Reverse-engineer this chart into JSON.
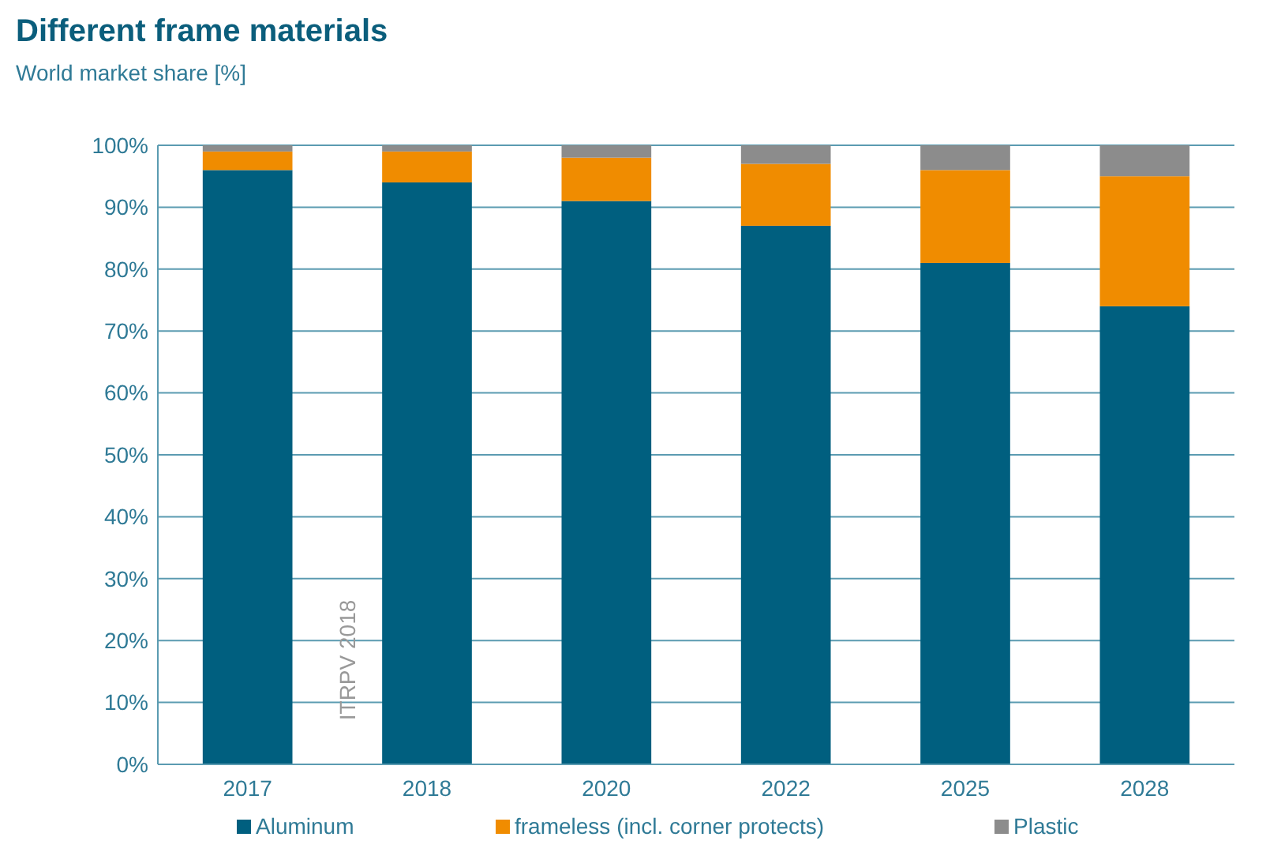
{
  "chart_data": {
    "type": "bar",
    "title": "Different frame materials",
    "subtitle": "World market share [%]",
    "categories": [
      "2017",
      "2018",
      "2020",
      "2022",
      "2025",
      "2028"
    ],
    "stacked": true,
    "series": [
      {
        "name": "Aluminum",
        "color": "#005f7f",
        "values": [
          96,
          94,
          91,
          87,
          81,
          74
        ]
      },
      {
        "name": "frameless (incl. corner protects)",
        "color": "#f08c00",
        "values": [
          3,
          5,
          7,
          10,
          15,
          21
        ]
      },
      {
        "name": "Plastic",
        "color": "#8c8c8c",
        "values": [
          1,
          1,
          2,
          3,
          4,
          5
        ]
      }
    ],
    "ylim": [
      0,
      100
    ],
    "yticks": [
      {
        "value": 0,
        "label": "0%"
      },
      {
        "value": 10,
        "label": "10%"
      },
      {
        "value": 20,
        "label": "20%"
      },
      {
        "value": 30,
        "label": "30%"
      },
      {
        "value": 40,
        "label": "40%"
      },
      {
        "value": 50,
        "label": "50%"
      },
      {
        "value": 60,
        "label": "60%"
      },
      {
        "value": 70,
        "label": "70%"
      },
      {
        "value": 80,
        "label": "80%"
      },
      {
        "value": 90,
        "label": "90%"
      },
      {
        "value": 100,
        "label": "100%"
      }
    ],
    "grid": "y",
    "legend": "bottom",
    "annotations": [
      "ITRPV 2018"
    ]
  }
}
